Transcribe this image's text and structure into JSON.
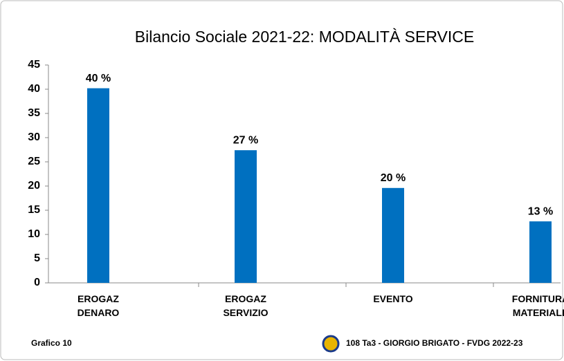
{
  "chart_data": {
    "type": "bar",
    "title": "Bilancio Sociale 2021-22: MODALITÀ SERVICE",
    "categories": [
      [
        "EROGAZ",
        "DENARO"
      ],
      [
        "EROGAZ",
        "SERVIZIO"
      ],
      [
        "EVENTO"
      ],
      [
        "FORNITURA",
        "MATERIALE"
      ]
    ],
    "values": [
      40.2,
      27.4,
      19.6,
      12.7
    ],
    "value_labels": [
      "40 %",
      "27 %",
      "20 %",
      "13 %"
    ],
    "color": "#0070c0",
    "ylim": [
      0,
      45
    ],
    "yticks": [
      0,
      5,
      10,
      15,
      20,
      25,
      30,
      35,
      40,
      45
    ],
    "grid": false,
    "annotations": [
      "Grafico 10",
      "108 Ta3 - GIORGIO  BRIGATO - FVDG 2022-23"
    ]
  }
}
